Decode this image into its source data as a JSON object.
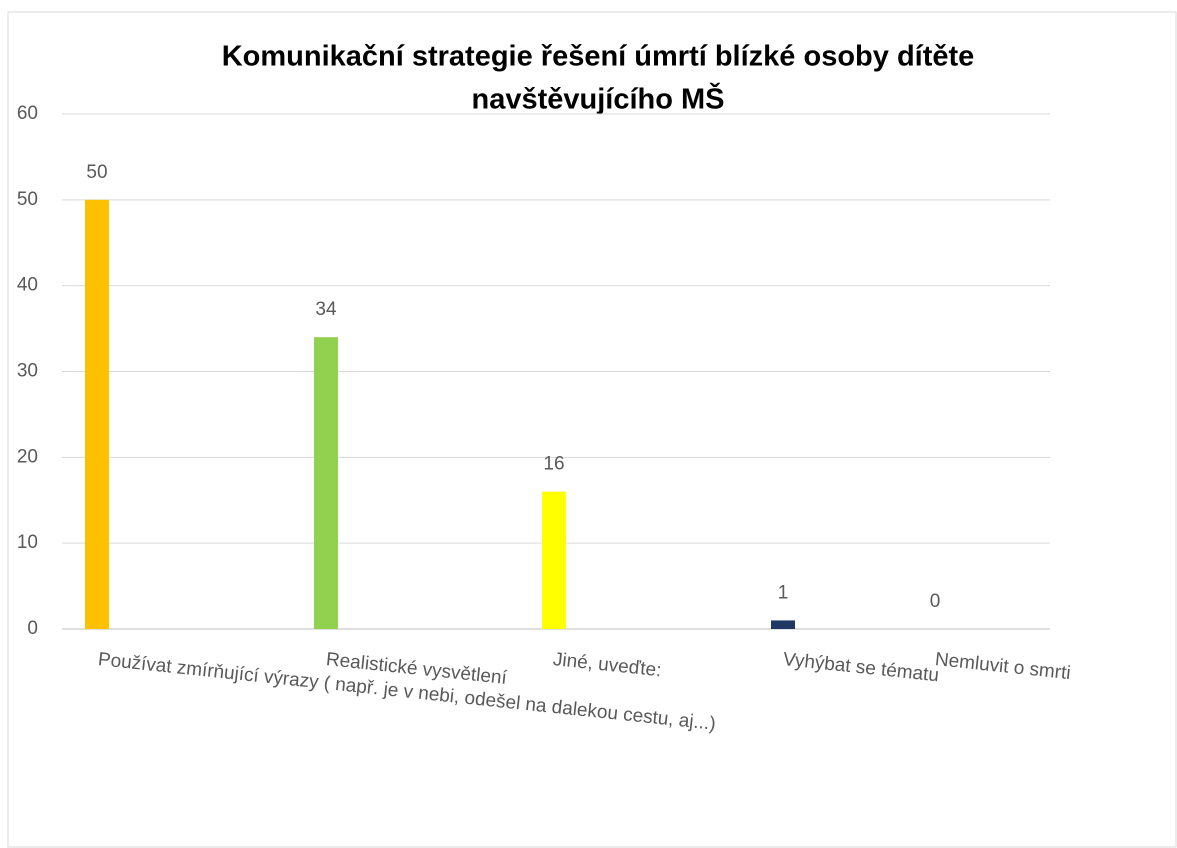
{
  "chart_data": {
    "type": "bar",
    "title": [
      "Komunikační strategie řešení úmrtí blízké osoby dítěte",
      "navštěvujícího MŠ"
    ],
    "categories": [
      "Používat zmírňující výrazy ( např. je v nebi, odešel na dalekou cestu, aj...)",
      "Realistické vysvětlení",
      "Jiné, uveďte:",
      "Vyhýbat se tématu",
      "Nemluvit o smrti"
    ],
    "values": [
      50,
      34,
      16,
      1,
      0
    ],
    "colors": [
      "#ffc000",
      "#92d050",
      "#ffff00",
      "#1f3864",
      "#7030a0"
    ],
    "ylim": [
      0,
      60
    ],
    "yticks": [
      0,
      10,
      20,
      30,
      40,
      50,
      60
    ],
    "grid": true
  }
}
